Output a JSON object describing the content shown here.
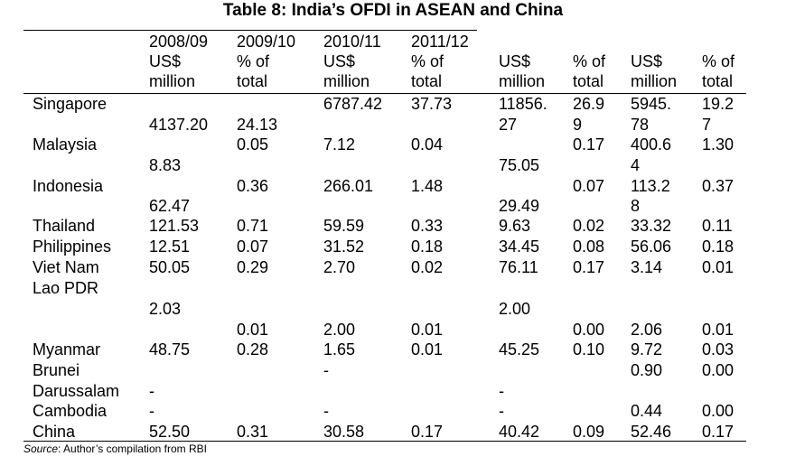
{
  "title": "Table 8: India’s OFDI in ASEAN and China",
  "header": {
    "col1": [
      "2008/09",
      "US$",
      "million"
    ],
    "col2": [
      "2009/10",
      "% of",
      "total"
    ],
    "col3": [
      "2010/11",
      "US$",
      "million"
    ],
    "col4": [
      "2011/12",
      "% of",
      "total"
    ],
    "col5": [
      "US$",
      "million"
    ],
    "col6": [
      "% of",
      "total"
    ],
    "col7": [
      "US$",
      "million"
    ],
    "col8": [
      "% of",
      "total"
    ]
  },
  "rows": {
    "singapore": {
      "label": "Singapore",
      "c1": "4137.20",
      "c2": "24.13",
      "c3": "6787.42",
      "c4": "37.73",
      "c5a": "11856.",
      "c5b": "27",
      "c6a": "26.9",
      "c6b": "9",
      "c7a": "5945.",
      "c7b": "78",
      "c8a": "19.2",
      "c8b": "7"
    },
    "malaysia": {
      "label": "Malaysia",
      "c1": "8.83",
      "c2": "0.05",
      "c3": "7.12",
      "c4": "0.04",
      "c5": "75.05",
      "c6": "0.17",
      "c7a": "400.6",
      "c7b": "4",
      "c8": "1.30"
    },
    "indonesia": {
      "label": "Indonesia",
      "c1": "62.47",
      "c2": "0.36",
      "c3": "266.01",
      "c4": "1.48",
      "c5": "29.49",
      "c6": "0.07",
      "c7a": "113.2",
      "c7b": "8",
      "c8": "0.37"
    },
    "thailand": {
      "label": "Thailand",
      "c1": "121.53",
      "c2": "0.71",
      "c3": "59.59",
      "c4": "0.33",
      "c5": "9.63",
      "c6": "0.02",
      "c7": "33.32",
      "c8": "0.11"
    },
    "philippines": {
      "label": "Philippines",
      "c1": "12.51",
      "c2": "0.07",
      "c3": "31.52",
      "c4": "0.18",
      "c5": "34.45",
      "c6": "0.08",
      "c7": "56.06",
      "c8": "0.18"
    },
    "vietnam": {
      "label": "Viet Nam",
      "c1": "50.05",
      "c2": "0.29",
      "c3": "2.70",
      "c4": "0.02",
      "c5": "76.11",
      "c6": "0.17",
      "c7": "3.14",
      "c8": "0.01"
    },
    "laos": {
      "label": "Lao PDR",
      "c1": "2.03",
      "c2": "0.01",
      "c3": "2.00",
      "c4": "0.01",
      "c5": "2.00",
      "c6": "0.00",
      "c7": "2.06",
      "c8": "0.01"
    },
    "myanmar": {
      "label": "Myanmar",
      "c1": "48.75",
      "c2": "0.28",
      "c3": "1.65",
      "c4": "0.01",
      "c5": "45.25",
      "c6": "0.10",
      "c7": "9.72",
      "c8": "0.03"
    },
    "brunei": {
      "label1": "Brunei",
      "label2": "Darussalam",
      "c1": "-",
      "c3": "-",
      "c5": "-",
      "c7": "0.90",
      "c8": "0.00"
    },
    "cambodia": {
      "label": "Cambodia",
      "c1": "-",
      "c3": "-",
      "c5": "-",
      "c7": "0.44",
      "c8": "0.00"
    },
    "china": {
      "label": "China",
      "c1": "52.50",
      "c2": "0.31",
      "c3": "30.58",
      "c4": "0.17",
      "c5": "40.42",
      "c6": "0.09",
      "c7": "52.46",
      "c8": "0.17"
    }
  },
  "source": {
    "label": "Source",
    "text": ": Author’s compilation from RBI"
  }
}
